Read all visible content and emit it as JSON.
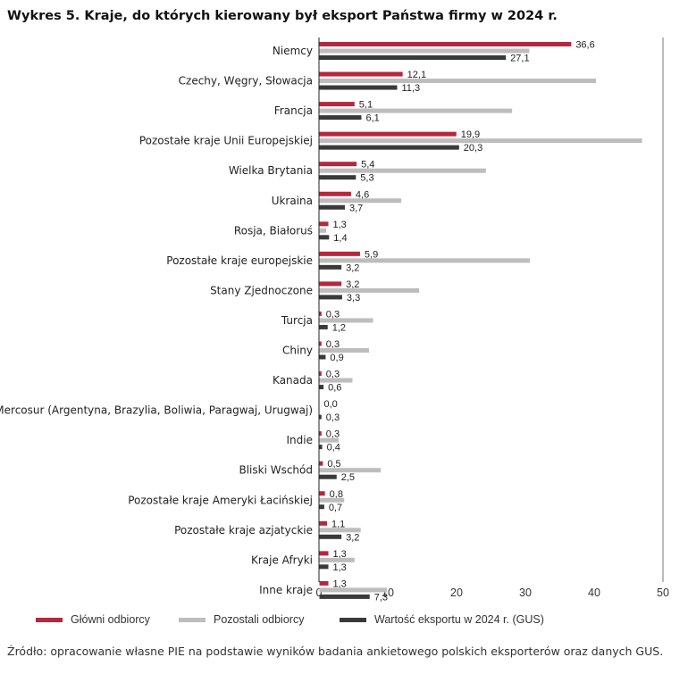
{
  "title": "Wykres 5.  Kraje, do których kierowany był eksport Państwa firmy w 2024 r.",
  "source_note": "Źródło: opracowanie własne PIE na podstawie wyników badania ankietowego polskich eksporterów oraz danych GUS.",
  "chart_data": {
    "type": "bar",
    "orientation": "horizontal",
    "categories": [
      "Niemcy",
      "Czechy, Węgry, Słowacja",
      "Francja",
      "Pozostałe kraje Unii Europejskiej",
      "Wielka Brytania",
      "Ukraina",
      "Rosja, Białoruś",
      "Pozostałe kraje europejskie",
      "Stany Zjednoczone",
      "Turcja",
      "Chiny",
      "Kanada",
      "Mercosur (Argentyna, Brazylia, Boliwia, Paragwaj, Urugwaj)",
      "Indie",
      "Bliski Wschód",
      "Pozostałe kraje Ameryki Łacińskiej",
      "Pozostałe kraje azjatyckie",
      "Kraje Afryki",
      "Inne kraje"
    ],
    "series": [
      {
        "name": "Główni odbiorcy",
        "color": "#b5273c",
        "labeled": true,
        "values": [
          36.6,
          12.1,
          5.1,
          19.9,
          5.4,
          4.6,
          1.3,
          5.9,
          3.2,
          0.3,
          0.3,
          0.3,
          0.0,
          0.3,
          0.5,
          0.8,
          1.1,
          1.3,
          1.3
        ],
        "labels": [
          "36,6",
          "12,1",
          "5,1",
          "19,9",
          "5,4",
          "4,6",
          "1,3",
          "5,9",
          "3,2",
          "0,3",
          "0,3",
          "0,3",
          "0,0",
          "0,3",
          "0,5",
          "0,8",
          "1,1",
          "1,3",
          "1,3"
        ]
      },
      {
        "name": "Pozostali odbiorcy",
        "color": "#bdbdbd",
        "labeled": false,
        "values": [
          30.5,
          40.2,
          28.0,
          46.9,
          24.2,
          11.9,
          1.0,
          30.6,
          14.5,
          7.8,
          7.2,
          4.8,
          0.0,
          2.8,
          8.9,
          3.6,
          6.0,
          5.1,
          9.8
        ]
      },
      {
        "name": "Wartość eksportu w 2024 r. (GUS)",
        "color": "#3a3a3a",
        "labeled": true,
        "values": [
          27.1,
          11.3,
          6.1,
          20.3,
          5.3,
          3.7,
          1.4,
          3.2,
          3.3,
          1.2,
          0.9,
          0.6,
          0.3,
          0.4,
          2.5,
          0.7,
          3.2,
          1.3,
          7.3
        ],
        "labels": [
          "27,1",
          "11,3",
          "6,1",
          "20,3",
          "5,3",
          "3,7",
          "1,4",
          "3,2",
          "3,3",
          "1,2",
          "0,9",
          "0,6",
          "0,3",
          "0,4",
          "2,5",
          "0,7",
          "3,2",
          "1,3",
          "7,3"
        ]
      }
    ],
    "xlim": [
      0,
      50
    ],
    "xticks": [
      0,
      10,
      20,
      30,
      40,
      50
    ],
    "xtick_labels": [
      "0",
      "10",
      "20",
      "30",
      "40",
      "50"
    ],
    "grid": "vertical line at 50",
    "legend_position": "bottom"
  }
}
